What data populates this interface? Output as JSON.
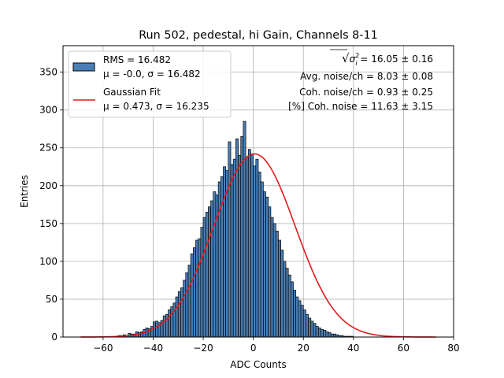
{
  "chart_data": {
    "type": "histogram",
    "title": "Run 502, pedestal, hi Gain, Channels 8-11",
    "xlabel": "ADC Counts",
    "ylabel": "Entries",
    "xlim": [
      -76,
      80
    ],
    "ylim": [
      0,
      385
    ],
    "xticks": [
      -60,
      -40,
      -20,
      0,
      20,
      40,
      60,
      80
    ],
    "xtick_labels": [
      "−60",
      "−40",
      "−20",
      "0",
      "20",
      "40",
      "60",
      "80"
    ],
    "yticks": [
      0,
      50,
      100,
      150,
      200,
      250,
      300,
      350
    ],
    "ytick_labels": [
      "0",
      "50",
      "100",
      "150",
      "200",
      "250",
      "300",
      "350"
    ],
    "grid": true,
    "bin_width": 1,
    "bin_start": -69,
    "counts": [
      0,
      0,
      0,
      0,
      0,
      0,
      0,
      0,
      0,
      0,
      0,
      0,
      0,
      0,
      1,
      2,
      2,
      3,
      2,
      5,
      4,
      4,
      7,
      6,
      7,
      10,
      12,
      11,
      14,
      20,
      21,
      19,
      22,
      28,
      30,
      36,
      40,
      45,
      53,
      60,
      65,
      75,
      85,
      95,
      110,
      118,
      128,
      130,
      145,
      158,
      165,
      172,
      180,
      192,
      188,
      205,
      212,
      225,
      220,
      258,
      228,
      235,
      262,
      240,
      265,
      285,
      238,
      248,
      242,
      226,
      235,
      218,
      205,
      192,
      185,
      172,
      158,
      150,
      140,
      128,
      115,
      100,
      91,
      82,
      73,
      62,
      53,
      48,
      42,
      36,
      30,
      25,
      21,
      18,
      14,
      12,
      10,
      9,
      7,
      6,
      4,
      4,
      3,
      2,
      2,
      1,
      1,
      1,
      1,
      0,
      0,
      0,
      0,
      0,
      0,
      0,
      0,
      0,
      0,
      0,
      0,
      0,
      0,
      0,
      0,
      0,
      0,
      0,
      0,
      0,
      0,
      0,
      0,
      0,
      0,
      0,
      0,
      0,
      0,
      0,
      0,
      0
    ],
    "series": [
      {
        "name": "RMS = 16.482",
        "legend_line2": "μ = -0.0, σ = 16.482",
        "kind": "histogram",
        "color": "#4a7fb5",
        "edgecolor": "#000000"
      },
      {
        "name": "Gaussian Fit",
        "legend_line2": "μ = 0.473, σ = 16.235",
        "kind": "line",
        "color": "#e41a1c",
        "mu": 0.473,
        "sigma": 16.235,
        "amplitude": 242,
        "x_range": [
          -69,
          73
        ]
      }
    ],
    "legend_position": "upper left",
    "annotations": {
      "sqrt_prefix": "√",
      "sqrt_sigma": "σ",
      "sqrt_sub": "i",
      "sqrt_sup": "2",
      "sqrt_value": " = 16.05 ± 0.16",
      "avg_noise": "Avg. noise/ch = 8.03 ± 0.08",
      "coh_noise": "Coh. noise/ch = 0.93 ± 0.25",
      "coh_pct": "[%] Coh. noise = 11.63 ± 3.15"
    }
  }
}
